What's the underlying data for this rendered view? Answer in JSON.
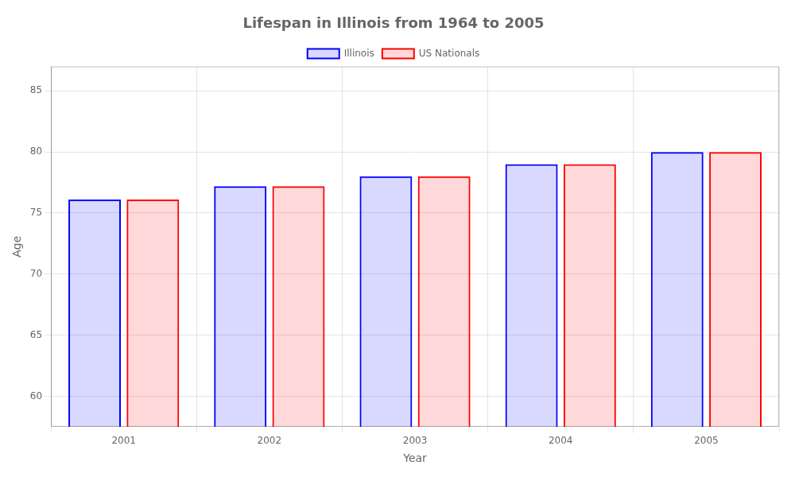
{
  "chart_data": {
    "type": "bar",
    "title": "Lifespan in Illinois from 1964 to 2005",
    "xlabel": "Year",
    "ylabel": "Age",
    "categories": [
      "2001",
      "2002",
      "2003",
      "2004",
      "2005"
    ],
    "series": [
      {
        "name": "Illinois",
        "color": "#0000ff",
        "values": [
          76.1,
          77.2,
          78.0,
          79.0,
          80.0
        ]
      },
      {
        "name": "US Nationals",
        "color": "#ff0000",
        "values": [
          76.1,
          77.2,
          78.0,
          79.0,
          80.0
        ]
      }
    ],
    "ylim": [
      57.5,
      87
    ],
    "yticks": [
      60,
      65,
      70,
      75,
      80,
      85
    ],
    "grid": true,
    "legend": "top"
  }
}
